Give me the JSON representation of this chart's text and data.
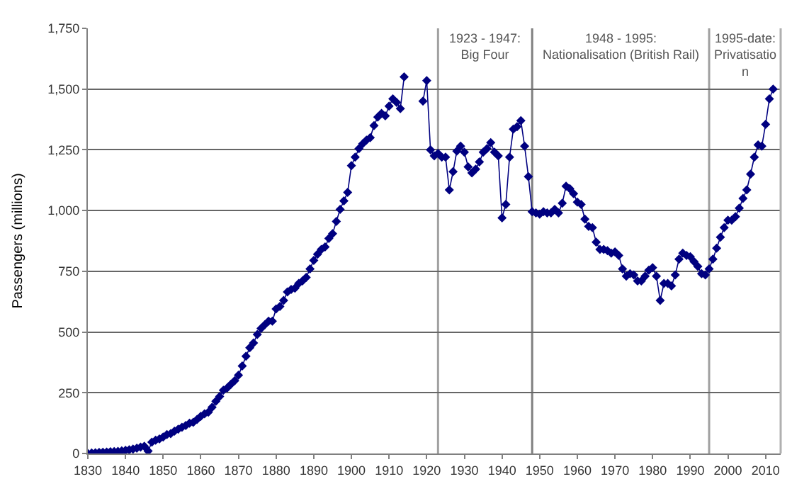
{
  "chart_data": {
    "type": "line",
    "ylabel": "Passengers (millions)",
    "x": [
      1830,
      1831,
      1832,
      1833,
      1834,
      1835,
      1836,
      1837,
      1838,
      1839,
      1840,
      1841,
      1842,
      1843,
      1844,
      1845,
      1846,
      1847,
      1848,
      1849,
      1850,
      1851,
      1852,
      1853,
      1854,
      1855,
      1856,
      1857,
      1858,
      1859,
      1860,
      1861,
      1862,
      1863,
      1864,
      1865,
      1866,
      1867,
      1868,
      1869,
      1870,
      1871,
      1872,
      1873,
      1874,
      1875,
      1876,
      1877,
      1878,
      1879,
      1880,
      1881,
      1882,
      1883,
      1884,
      1885,
      1886,
      1887,
      1888,
      1889,
      1890,
      1891,
      1892,
      1893,
      1894,
      1895,
      1896,
      1897,
      1898,
      1899,
      1900,
      1901,
      1902,
      1903,
      1904,
      1905,
      1906,
      1907,
      1908,
      1909,
      1910,
      1911,
      1912,
      1913,
      1914,
      1915,
      1916,
      1917,
      1918,
      1919,
      1920,
      1921,
      1922,
      1923,
      1924,
      1925,
      1926,
      1927,
      1928,
      1929,
      1930,
      1931,
      1932,
      1933,
      1934,
      1935,
      1936,
      1937,
      1938,
      1939,
      1940,
      1941,
      1942,
      1943,
      1944,
      1945,
      1946,
      1947,
      1948,
      1949,
      1950,
      1951,
      1952,
      1953,
      1954,
      1955,
      1956,
      1957,
      1958,
      1959,
      1960,
      1961,
      1962,
      1963,
      1964,
      1965,
      1966,
      1967,
      1968,
      1969,
      1970,
      1971,
      1972,
      1973,
      1974,
      1975,
      1976,
      1977,
      1978,
      1979,
      1980,
      1981,
      1982,
      1983,
      1984,
      1985,
      1986,
      1987,
      1988,
      1989,
      1990,
      1991,
      1992,
      1993,
      1994,
      1995,
      1996,
      1997,
      1998,
      1999,
      2000,
      2001,
      2002,
      2003,
      2004,
      2005,
      2006,
      2007,
      2008,
      2009,
      2010,
      2011,
      2012
    ],
    "series": [
      {
        "color": "#000080",
        "values": [
          0,
          2,
          3,
          4,
          5,
          6,
          7,
          8,
          9,
          11,
          13,
          15,
          18,
          22,
          26,
          30,
          10,
          47,
          55,
          60,
          68,
          78,
          82,
          92,
          100,
          108,
          115,
          125,
          128,
          140,
          153,
          163,
          170,
          190,
          215,
          235,
          260,
          270,
          285,
          300,
          322,
          360,
          400,
          435,
          455,
          490,
          515,
          530,
          545,
          545,
          595,
          605,
          630,
          665,
          675,
          680,
          700,
          710,
          725,
          760,
          795,
          820,
          840,
          850,
          885,
          905,
          955,
          1005,
          1040,
          1075,
          1185,
          1220,
          1255,
          1275,
          1290,
          1300,
          1350,
          1385,
          1400,
          1390,
          1430,
          1460,
          1445,
          1420,
          1550,
          null,
          null,
          null,
          null,
          1450,
          1535,
          1250,
          1225,
          1235,
          1220,
          1220,
          1085,
          1160,
          1245,
          1265,
          1240,
          1180,
          1155,
          1170,
          1200,
          1240,
          1255,
          1280,
          1240,
          1225,
          970,
          1025,
          1220,
          1335,
          1345,
          1370,
          1265,
          1140,
          995,
          990,
          985,
          995,
          990,
          990,
          1005,
          990,
          1030,
          1100,
          1090,
          1070,
          1035,
          1025,
          965,
          935,
          930,
          870,
          840,
          840,
          835,
          825,
          830,
          815,
          760,
          730,
          740,
          735,
          710,
          710,
          730,
          755,
          765,
          730,
          630,
          700,
          700,
          690,
          735,
          800,
          825,
          815,
          810,
          790,
          770,
          740,
          735,
          760,
          800,
          845,
          890,
          930,
          960,
          960,
          975,
          1010,
          1050,
          1085,
          1150,
          1220,
          1270,
          1265,
          1355,
          1460,
          1500
        ]
      }
    ],
    "xlim": [
      1830,
      2014
    ],
    "xticks": [
      1830,
      1840,
      1850,
      1860,
      1870,
      1880,
      1890,
      1900,
      1910,
      1920,
      1930,
      1940,
      1950,
      1960,
      1970,
      1980,
      1990,
      2000,
      2010
    ],
    "ylim": [
      0,
      1750
    ],
    "yticks": [
      {
        "value": 0,
        "label": "0"
      },
      {
        "value": 250,
        "label": "250"
      },
      {
        "value": 500,
        "label": "500"
      },
      {
        "value": 750,
        "label": "750"
      },
      {
        "value": 1000,
        "label": "1,000"
      },
      {
        "value": 1250,
        "label": "1,250"
      },
      {
        "value": 1500,
        "label": "1,500"
      },
      {
        "value": 1750,
        "label": "1,750"
      }
    ],
    "grid": "y",
    "marker": "diamond",
    "line_style": "solid",
    "legend": false,
    "ref_lines": [
      {
        "axis": "x",
        "value": 1923,
        "label": "1923 - 1947:\nBig Four",
        "color": "#a0a0a0"
      },
      {
        "axis": "x",
        "value": 1948,
        "label": "1948 - 1995:\nNationalisation (British Rail)",
        "color": "#808080"
      },
      {
        "axis": "x",
        "value": 1995,
        "label": "1995-date:\nPrivatisatio\nn",
        "color": "#a0a0a0"
      }
    ]
  }
}
